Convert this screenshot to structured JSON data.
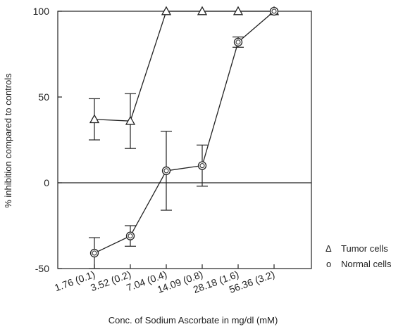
{
  "chart_data": {
    "type": "line",
    "xlabel": "Conc. of Sodium Ascorbate in mg/dl (mM)",
    "ylabel": "% inhibition compared to controls",
    "categories": [
      "1.76 (0.1)",
      "3.52 (0.2)",
      "7.04 (0.4)",
      "14.09 (0.8)",
      "28.18 (1.6)",
      "56.36 (3.2)"
    ],
    "ylim": [
      -50,
      100
    ],
    "yticks": [
      -50,
      "0",
      50,
      100
    ],
    "zero_line": true,
    "legend_position": "bottom-right",
    "series": [
      {
        "name": "Tumor cells",
        "marker": "triangle",
        "values": [
          37,
          36,
          100,
          100,
          100,
          100
        ],
        "error": [
          12,
          16,
          0,
          0,
          0,
          0
        ]
      },
      {
        "name": "Normal cells",
        "marker": "circle",
        "values": [
          -41,
          -31,
          7,
          10,
          82,
          100
        ],
        "error": [
          9,
          6,
          23,
          12,
          3,
          0
        ]
      }
    ],
    "legend": [
      {
        "symbol": "Δ",
        "label": "Tumor cells"
      },
      {
        "symbol": "o",
        "label": "Normal cells"
      }
    ]
  }
}
